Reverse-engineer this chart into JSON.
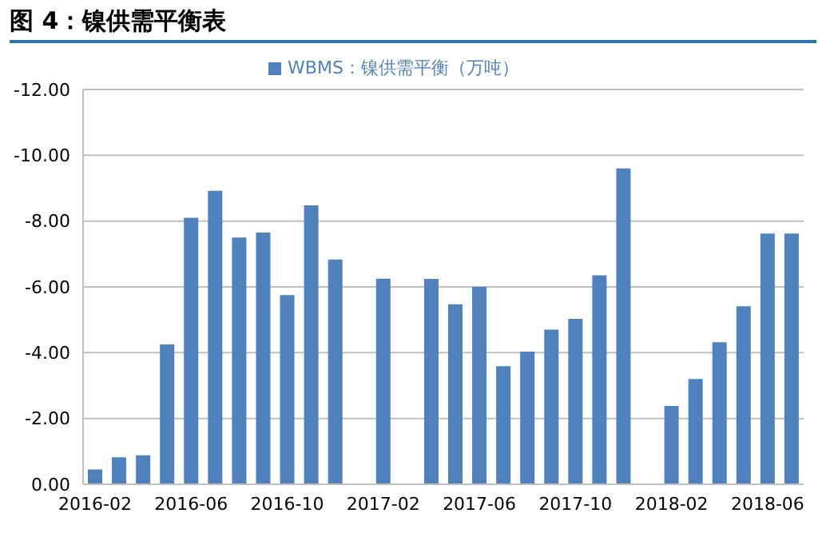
{
  "chart_data": {
    "type": "bar",
    "title": "图 4：镍供需平衡表",
    "categories": [
      "2016-02",
      null,
      null,
      null,
      "2016-06",
      null,
      null,
      null,
      "2016-10",
      null,
      null,
      null,
      "2017-02",
      null,
      null,
      null,
      "2017-06",
      null,
      null,
      null,
      "2017-10",
      null,
      null,
      null,
      "2018-02",
      null,
      null,
      null,
      "2018-06",
      null
    ],
    "series": [
      {
        "name": "WBMS：镍供需平衡（万吨）",
        "color": "#4f81bd",
        "values": [
          -0.45,
          -0.82,
          -0.88,
          -4.25,
          -8.1,
          -8.92,
          -7.5,
          -7.65,
          -5.75,
          -8.48,
          -6.83,
          null,
          -6.25,
          null,
          -6.24,
          -5.47,
          -6.0,
          -3.59,
          -4.03,
          -4.7,
          -5.03,
          -6.35,
          -9.6,
          null,
          -2.38,
          -3.2,
          -4.32,
          -5.41,
          -7.62,
          -7.62
        ]
      }
    ],
    "ylim": [
      0,
      -12
    ],
    "yticks": [
      {
        "value": 0,
        "label": "0.00"
      },
      {
        "value": -2,
        "label": "-2.00"
      },
      {
        "value": -4,
        "label": "-4.00"
      },
      {
        "value": -6,
        "label": "-6.00"
      },
      {
        "value": -8,
        "label": "-8.00"
      },
      {
        "value": -10,
        "label": "-10.00"
      },
      {
        "value": -12,
        "label": "-12.00"
      }
    ],
    "grid": "y",
    "legend": "top"
  }
}
